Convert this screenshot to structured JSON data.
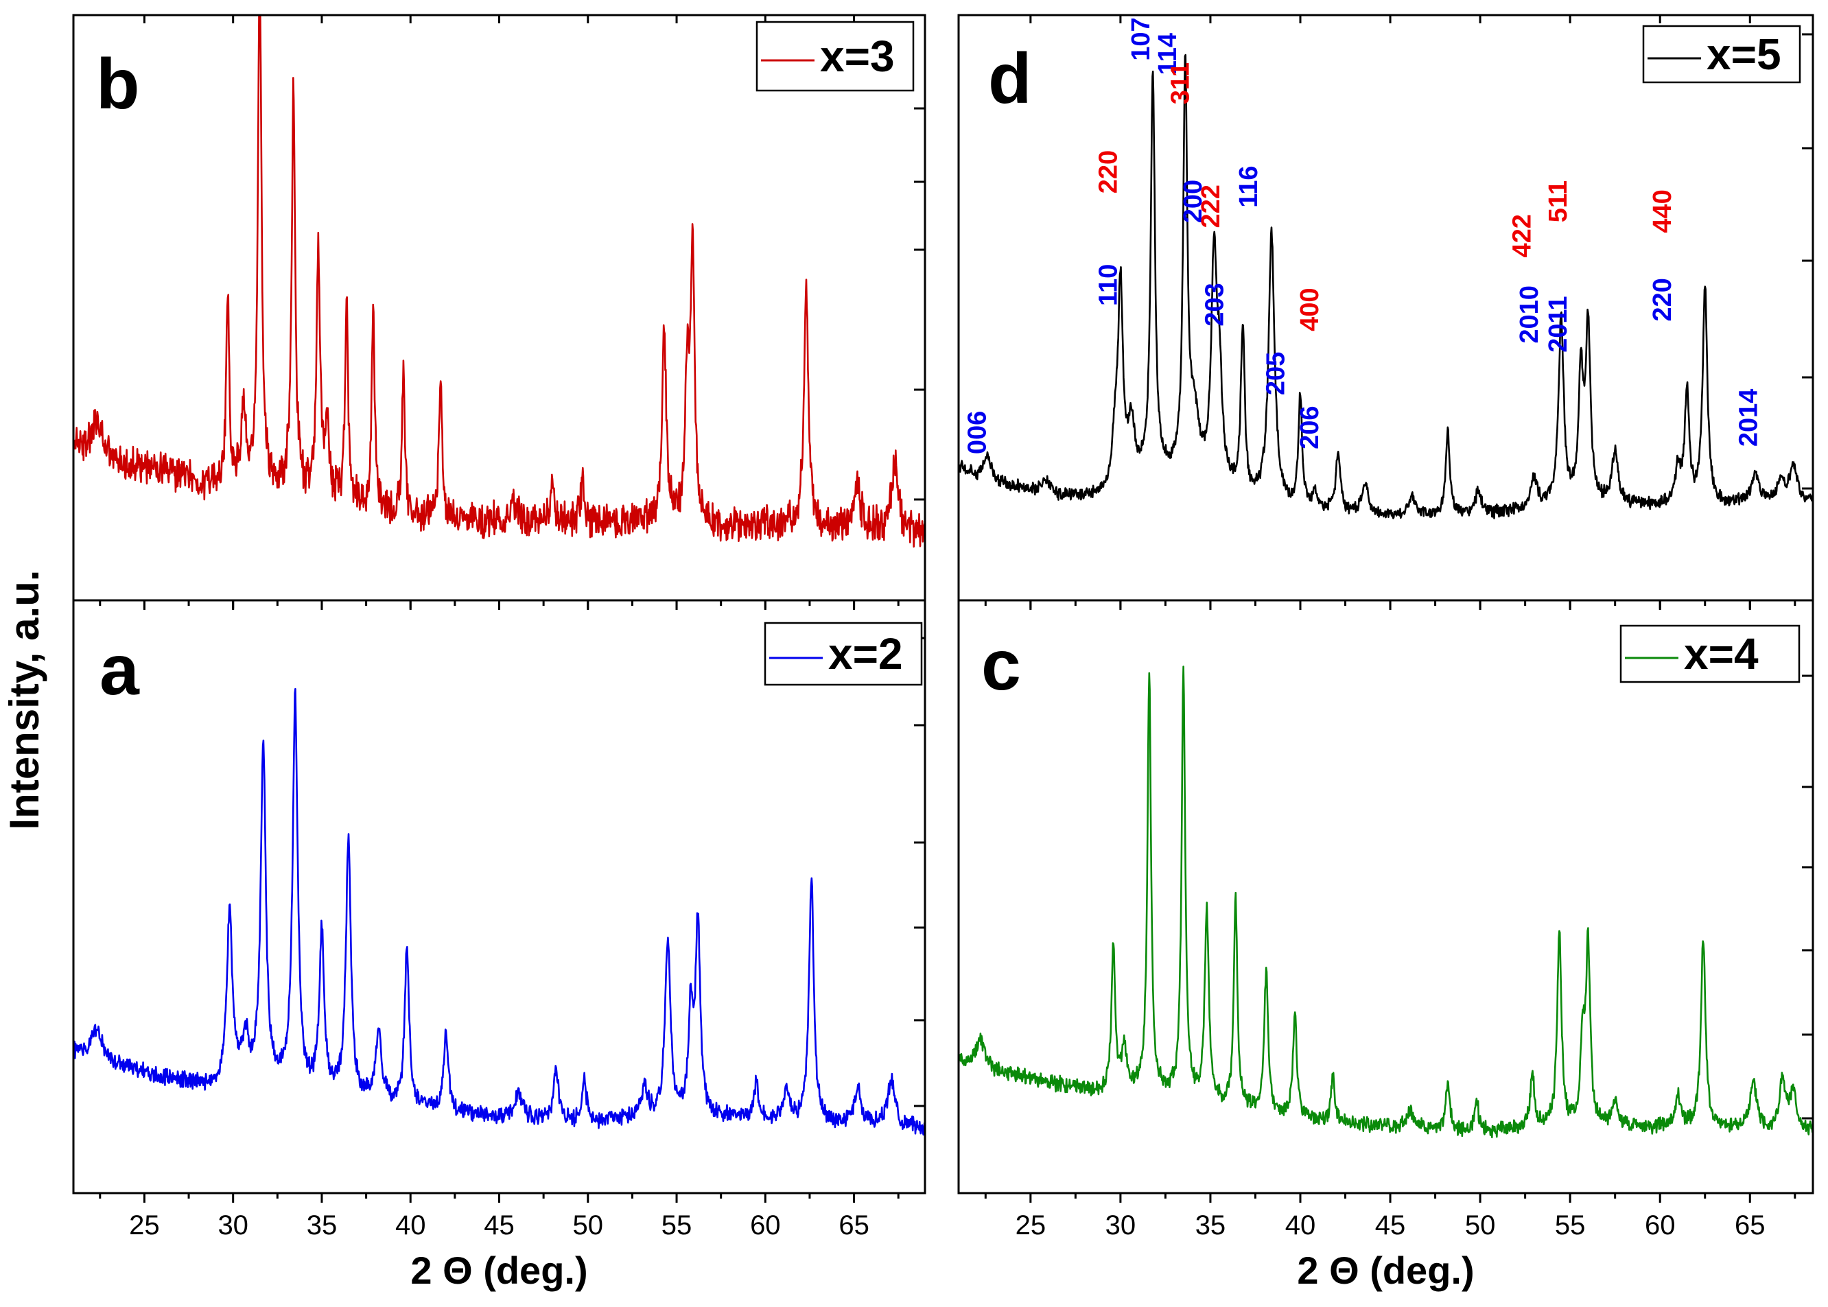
{
  "figure": {
    "y_axis_label": "Intensity, a.u.",
    "x_axis_label": "2 Θ (deg.)"
  },
  "chart_data": [
    {
      "id": "b",
      "type": "line",
      "panel_label": "b",
      "legend": "x=3",
      "color": "#cc0000",
      "xlim": [
        21,
        69
      ],
      "ylim": [
        0,
        100
      ],
      "xticks": [
        25,
        30,
        35,
        40,
        45,
        50,
        55,
        60,
        65
      ],
      "show_xticklabels": false,
      "xlabel": "",
      "baseline": [
        [
          21,
          26
        ],
        [
          22,
          22
        ],
        [
          26,
          19
        ],
        [
          29,
          16
        ],
        [
          30,
          17
        ],
        [
          34,
          14
        ],
        [
          40,
          10
        ],
        [
          45,
          9
        ],
        [
          50,
          8.5
        ],
        [
          53,
          9
        ],
        [
          58,
          8
        ],
        [
          63,
          8
        ],
        [
          69,
          7
        ]
      ],
      "noise": 2.8,
      "peaks": [
        [
          22.3,
          8,
          0.3
        ],
        [
          29.7,
          38,
          0.1
        ],
        [
          30.6,
          14,
          0.15
        ],
        [
          31.5,
          104,
          0.12
        ],
        [
          33.4,
          82,
          0.12
        ],
        [
          34.8,
          50,
          0.12
        ],
        [
          35.3,
          14,
          0.15
        ],
        [
          36.4,
          42,
          0.1
        ],
        [
          37.9,
          41,
          0.1
        ],
        [
          39.6,
          28,
          0.1
        ],
        [
          41.7,
          30,
          0.1
        ],
        [
          45.9,
          4,
          0.2
        ],
        [
          48.0,
          9,
          0.12
        ],
        [
          49.7,
          9,
          0.12
        ],
        [
          54.3,
          38,
          0.15
        ],
        [
          55.6,
          30,
          0.14
        ],
        [
          55.9,
          56,
          0.13
        ],
        [
          62.3,
          50,
          0.14
        ],
        [
          65.2,
          9,
          0.2
        ],
        [
          67.3,
          14,
          0.2
        ]
      ]
    },
    {
      "id": "a",
      "type": "line",
      "panel_label": "a",
      "legend": "x=2",
      "color": "#0000ee",
      "xlim": [
        21,
        69
      ],
      "ylim": [
        0,
        100
      ],
      "xticks": [
        25,
        30,
        35,
        40,
        45,
        50,
        55,
        60,
        65
      ],
      "show_xticklabels": true,
      "xlabel": "2 Θ (deg.)",
      "baseline": [
        [
          21,
          21
        ],
        [
          22,
          20
        ],
        [
          26,
          16
        ],
        [
          29,
          14
        ],
        [
          30,
          16
        ],
        [
          33,
          14
        ],
        [
          36,
          12
        ],
        [
          40,
          10
        ],
        [
          45,
          8
        ],
        [
          50,
          7
        ],
        [
          53,
          8
        ],
        [
          58,
          8
        ],
        [
          63,
          7
        ],
        [
          69,
          6
        ]
      ],
      "noise": 1.3,
      "peaks": [
        [
          22.3,
          6,
          0.35
        ],
        [
          29.8,
          33,
          0.18
        ],
        [
          30.7,
          8,
          0.2
        ],
        [
          31.7,
          68,
          0.17
        ],
        [
          33.5,
          78,
          0.17
        ],
        [
          35.0,
          32,
          0.16
        ],
        [
          36.5,
          51,
          0.17
        ],
        [
          38.2,
          14,
          0.2
        ],
        [
          39.8,
          32,
          0.15
        ],
        [
          42.0,
          16,
          0.15
        ],
        [
          46.1,
          5,
          0.25
        ],
        [
          48.2,
          11,
          0.15
        ],
        [
          49.8,
          8,
          0.15
        ],
        [
          53.2,
          6,
          0.2
        ],
        [
          54.5,
          36,
          0.18
        ],
        [
          55.8,
          20,
          0.16
        ],
        [
          56.2,
          38,
          0.16
        ],
        [
          59.5,
          7,
          0.15
        ],
        [
          61.2,
          6,
          0.2
        ],
        [
          62.6,
          49,
          0.16
        ],
        [
          65.2,
          8,
          0.2
        ],
        [
          67.1,
          9,
          0.25
        ]
      ]
    },
    {
      "id": "d",
      "type": "line",
      "panel_label": "d",
      "legend": "x=5",
      "color": "#000000",
      "xlim": [
        21,
        68.5
      ],
      "ylim": [
        0,
        100
      ],
      "xticks": [
        25,
        30,
        35,
        40,
        45,
        50,
        55,
        60,
        65
      ],
      "show_xticklabels": false,
      "xlabel": "",
      "baseline": [
        [
          21,
          20
        ],
        [
          22,
          18
        ],
        [
          26,
          14
        ],
        [
          29,
          14
        ],
        [
          30,
          17
        ],
        [
          32,
          18
        ],
        [
          35,
          16
        ],
        [
          37,
          13
        ],
        [
          40,
          11
        ],
        [
          45,
          10
        ],
        [
          50,
          10
        ],
        [
          54,
          12
        ],
        [
          58,
          12
        ],
        [
          61,
          12
        ],
        [
          63,
          12
        ],
        [
          66,
          13
        ],
        [
          68.5,
          13
        ]
      ],
      "noise": 1.0,
      "peaks": [
        [
          22.6,
          5,
          0.25
        ],
        [
          25.8,
          3,
          0.3
        ],
        [
          29.7,
          9,
          0.15
        ],
        [
          30.0,
          40,
          0.16
        ],
        [
          30.6,
          11,
          0.2
        ],
        [
          31.8,
          82,
          0.14
        ],
        [
          33.6,
          82,
          0.14
        ],
        [
          34.1,
          12,
          0.3
        ],
        [
          35.2,
          45,
          0.18
        ],
        [
          35.5,
          20,
          0.18
        ],
        [
          36.8,
          34,
          0.13
        ],
        [
          38.4,
          55,
          0.2
        ],
        [
          40.0,
          23,
          0.12
        ],
        [
          40.8,
          4,
          0.15
        ],
        [
          42.1,
          12,
          0.15
        ],
        [
          43.6,
          6,
          0.2
        ],
        [
          46.2,
          4,
          0.2
        ],
        [
          48.2,
          17,
          0.14
        ],
        [
          49.9,
          5,
          0.2
        ],
        [
          53.0,
          6,
          0.2
        ],
        [
          54.5,
          38,
          0.17
        ],
        [
          55.6,
          26,
          0.15
        ],
        [
          56.0,
          36,
          0.16
        ],
        [
          57.5,
          11,
          0.2
        ],
        [
          61.0,
          7,
          0.2
        ],
        [
          61.5,
          23,
          0.15
        ],
        [
          62.5,
          44,
          0.16
        ],
        [
          65.3,
          5,
          0.3
        ],
        [
          66.7,
          4,
          0.2
        ],
        [
          67.4,
          7,
          0.25
        ]
      ],
      "annotations": [
        {
          "text": "006",
          "x": 22.5,
          "y": 27,
          "color": "blue"
        },
        {
          "text": "110",
          "x": 29.8,
          "y": 57,
          "color": "blue"
        },
        {
          "text": "220",
          "x": 29.8,
          "y": 80,
          "color": "red"
        },
        {
          "text": "107",
          "x": 31.6,
          "y": 107,
          "color": "blue"
        },
        {
          "text": "114",
          "x": 33.1,
          "y": 104,
          "color": "blue"
        },
        {
          "text": "311",
          "x": 33.8,
          "y": 98,
          "color": "red"
        },
        {
          "text": "200",
          "x": 34.5,
          "y": 74,
          "color": "blue"
        },
        {
          "text": "222",
          "x": 35.5,
          "y": 73,
          "color": "red"
        },
        {
          "text": "203",
          "x": 35.7,
          "y": 53,
          "color": "blue"
        },
        {
          "text": "116",
          "x": 37.6,
          "y": 77,
          "color": "blue"
        },
        {
          "text": "205",
          "x": 39.1,
          "y": 39,
          "color": "blue"
        },
        {
          "text": "400",
          "x": 41.0,
          "y": 52,
          "color": "red"
        },
        {
          "text": "206",
          "x": 41.0,
          "y": 28,
          "color": "blue"
        },
        {
          "text": "422",
          "x": 52.8,
          "y": 67,
          "color": "red"
        },
        {
          "text": "2010",
          "x": 53.2,
          "y": 51,
          "color": "blue"
        },
        {
          "text": "511",
          "x": 54.8,
          "y": 74,
          "color": "red"
        },
        {
          "text": "2011",
          "x": 54.8,
          "y": 49,
          "color": "blue"
        },
        {
          "text": "440",
          "x": 60.6,
          "y": 72,
          "color": "red"
        },
        {
          "text": "220",
          "x": 60.6,
          "y": 54,
          "color": "blue"
        },
        {
          "text": "2014",
          "x": 65.4,
          "y": 30,
          "color": "blue"
        }
      ]
    },
    {
      "id": "c",
      "type": "line",
      "panel_label": "c",
      "legend": "x=4",
      "color": "#0a8a0a",
      "xlim": [
        21,
        68.5
      ],
      "ylim": [
        0,
        100
      ],
      "xticks": [
        25,
        30,
        35,
        40,
        45,
        50,
        55,
        60,
        65
      ],
      "show_xticklabels": true,
      "xlabel": "2 Θ (deg.)",
      "baseline": [
        [
          21,
          19
        ],
        [
          22,
          18
        ],
        [
          26,
          15
        ],
        [
          29,
          13
        ],
        [
          30,
          14
        ],
        [
          33,
          12
        ],
        [
          36,
          10
        ],
        [
          40,
          8
        ],
        [
          45,
          6
        ],
        [
          50,
          5
        ],
        [
          53,
          6
        ],
        [
          58,
          6
        ],
        [
          63,
          6
        ],
        [
          68.5,
          5
        ]
      ],
      "noise": 1.2,
      "peaks": [
        [
          22.2,
          6,
          0.3
        ],
        [
          29.6,
          29,
          0.12
        ],
        [
          30.2,
          8,
          0.15
        ],
        [
          31.6,
          84,
          0.12
        ],
        [
          33.5,
          86,
          0.12
        ],
        [
          34.8,
          38,
          0.14
        ],
        [
          36.4,
          42,
          0.12
        ],
        [
          38.1,
          28,
          0.13
        ],
        [
          39.7,
          21,
          0.12
        ],
        [
          41.8,
          9,
          0.12
        ],
        [
          46.1,
          4,
          0.2
        ],
        [
          48.2,
          9,
          0.15
        ],
        [
          49.8,
          6,
          0.15
        ],
        [
          52.9,
          10,
          0.15
        ],
        [
          54.4,
          39,
          0.14
        ],
        [
          55.7,
          17,
          0.14
        ],
        [
          56.0,
          36,
          0.14
        ],
        [
          57.5,
          5,
          0.2
        ],
        [
          61.0,
          6,
          0.2
        ],
        [
          62.4,
          38,
          0.15
        ],
        [
          65.2,
          9,
          0.25
        ],
        [
          66.8,
          10,
          0.2
        ],
        [
          67.4,
          8,
          0.2
        ]
      ]
    }
  ]
}
